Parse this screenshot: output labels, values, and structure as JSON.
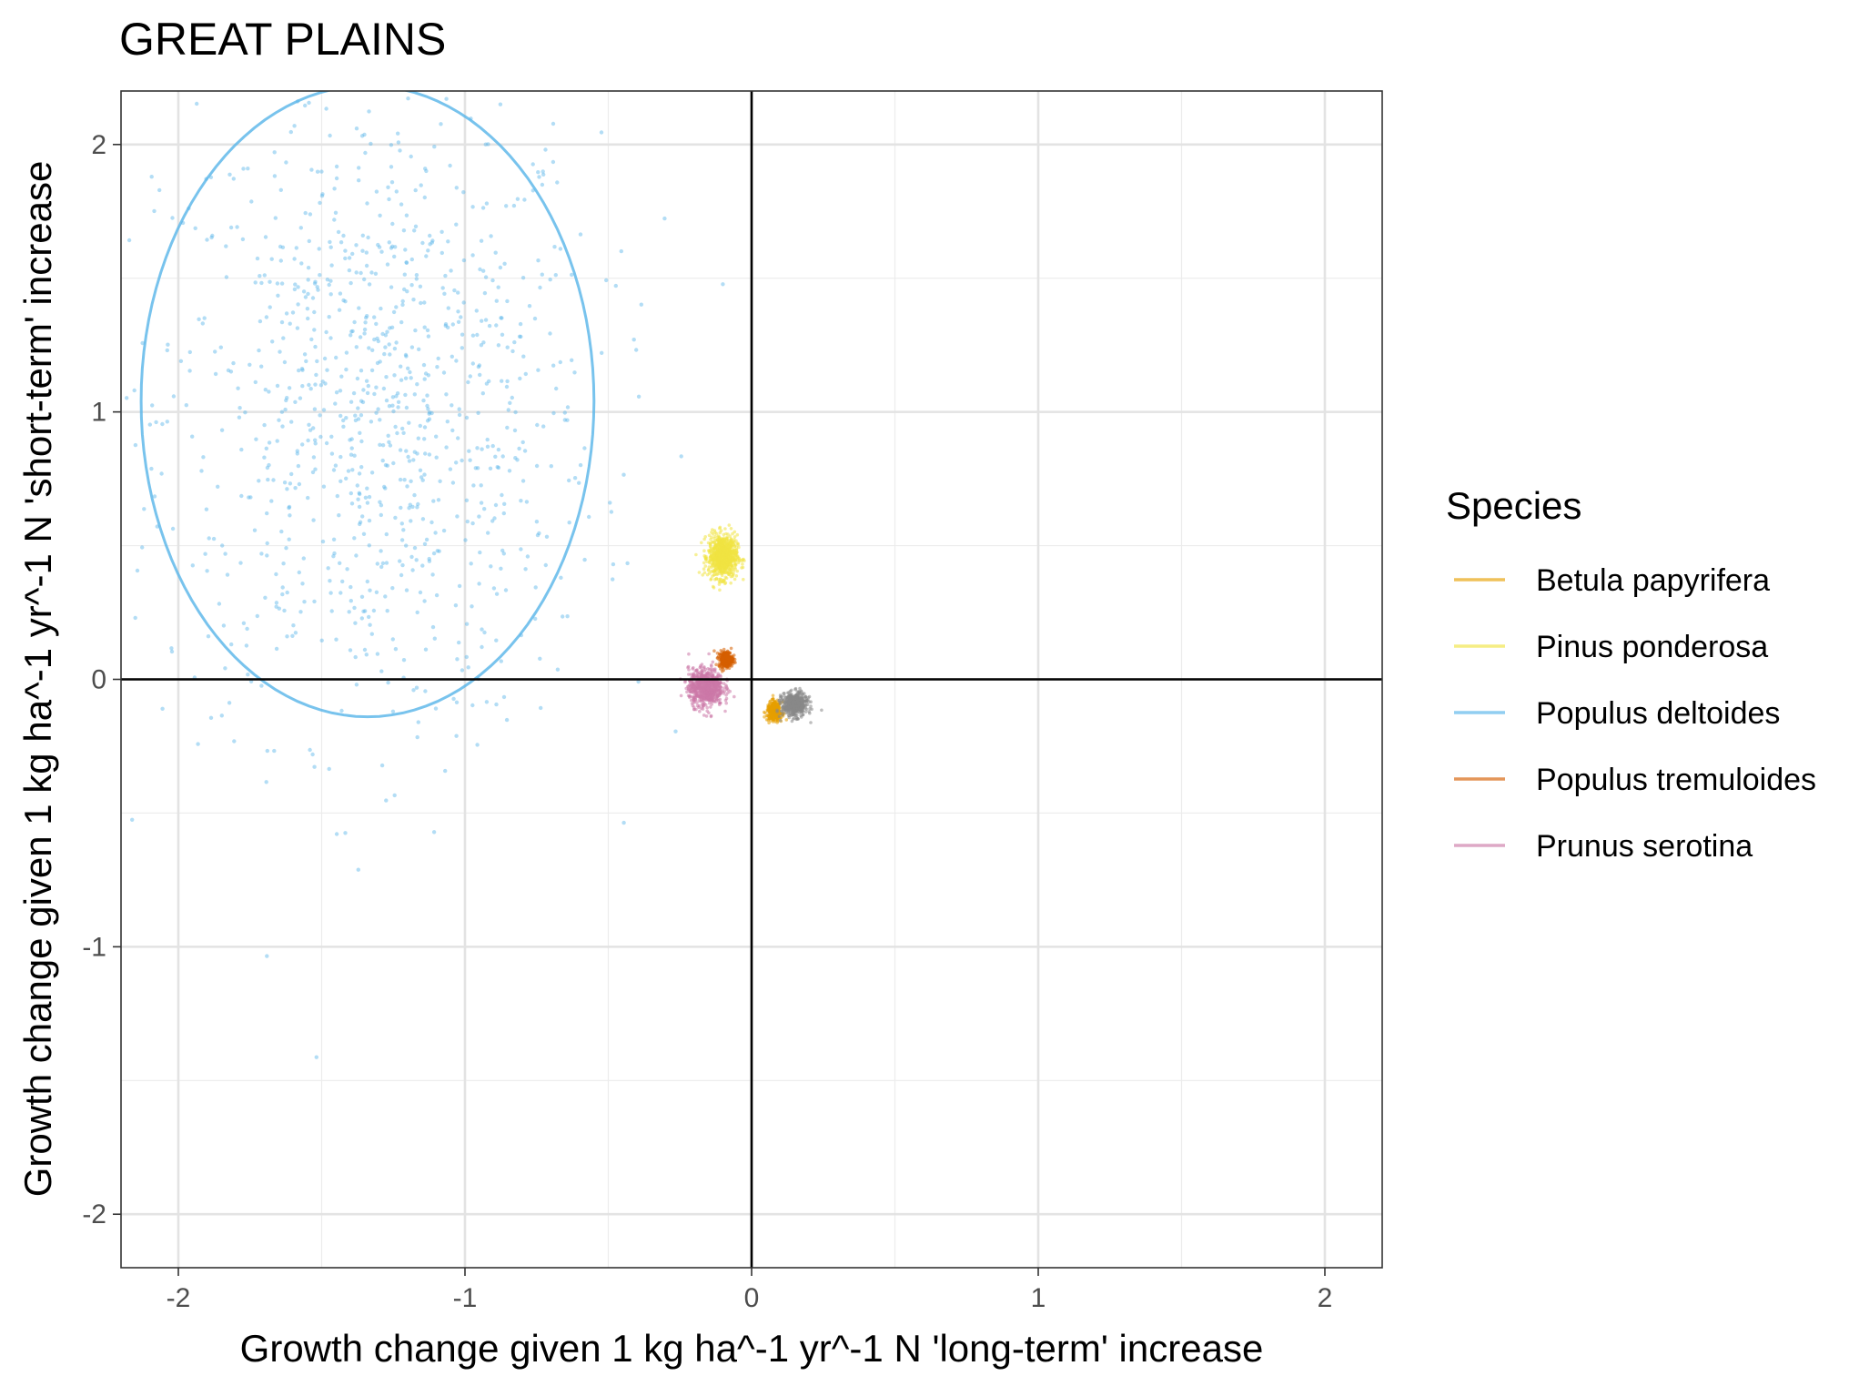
{
  "chart_data": {
    "type": "scatter",
    "title": "GREAT PLAINS",
    "xlabel": "Growth change given 1 kg ha^-1 yr^-1 N 'long-term' increase",
    "ylabel": "Growth change given 1 kg ha^-1 yr^-1 N 'short-term' increase",
    "xlim": [
      -2.2,
      2.2
    ],
    "ylim": [
      -2.2,
      2.2
    ],
    "x_ticks": [
      -2,
      -1,
      0,
      1,
      2
    ],
    "y_ticks": [
      -2,
      -1,
      0,
      1,
      2
    ],
    "x_tick_labels": [
      "-2",
      "-1",
      "0",
      "1",
      "2"
    ],
    "y_tick_labels": [
      "-2",
      "-1",
      "0",
      "1",
      "2"
    ],
    "grid": true,
    "reference_lines": {
      "x": 0,
      "y": 0
    },
    "legend": {
      "title": "Species",
      "position": "right",
      "entries": [
        {
          "label": "Betula papyrifera",
          "color": "#E69F00"
        },
        {
          "label": "Pinus ponderosa",
          "color": "#F0E442"
        },
        {
          "label": "Populus deltoides",
          "color": "#56B4E9"
        },
        {
          "label": "Populus tremuloides",
          "color": "#D55E00"
        },
        {
          "label": "Prunus serotina",
          "color": "#CC79A7"
        }
      ]
    },
    "series": [
      {
        "name": "Populus deltoides",
        "color": "#56B4E9",
        "center": [
          -1.3,
          1.0
        ],
        "spread": [
          0.38,
          0.6
        ],
        "n_points": 1000,
        "ellipse": {
          "center": [
            -1.34,
            1.04
          ],
          "radii": [
            0.79,
            1.18
          ]
        }
      },
      {
        "name": "Pinus ponderosa",
        "color": "#F0E442",
        "center": [
          -0.1,
          0.46
        ],
        "spread": [
          0.025,
          0.04
        ],
        "n_points": 800
      },
      {
        "name": "Populus tremuloides",
        "color": "#D55E00",
        "center": [
          -0.09,
          0.075
        ],
        "spread": [
          0.012,
          0.015
        ],
        "n_points": 300
      },
      {
        "name": "Prunus serotina",
        "color": "#CC79A7",
        "center": [
          -0.16,
          -0.03
        ],
        "spread": [
          0.03,
          0.035
        ],
        "n_points": 700
      },
      {
        "name": "Betula papyrifera",
        "color": "#E69F00",
        "center": [
          0.08,
          -0.12
        ],
        "spread": [
          0.013,
          0.018
        ],
        "n_points": 300
      },
      {
        "color": "#888888",
        "center": [
          0.15,
          -0.095
        ],
        "spread": [
          0.022,
          0.022
        ],
        "n_points": 500
      }
    ]
  }
}
